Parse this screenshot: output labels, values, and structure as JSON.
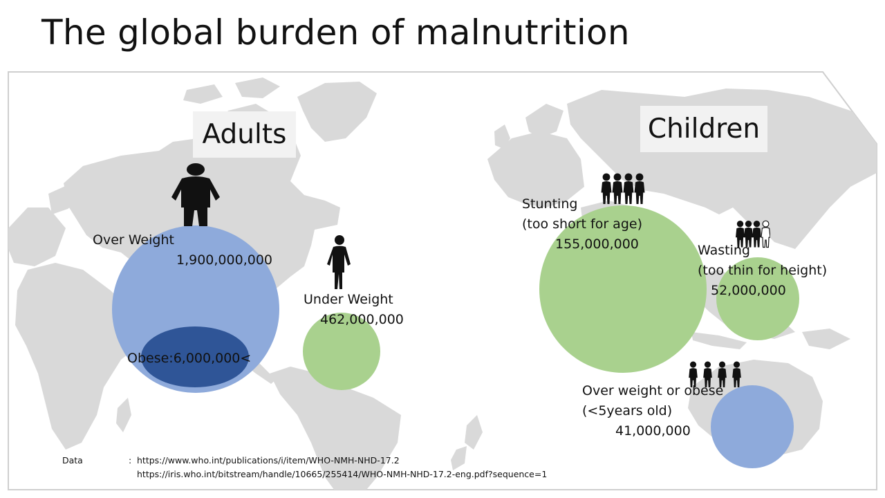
{
  "title": "The global burden of malnutrition",
  "adults": {
    "heading": "Adults",
    "over_weight": {
      "label": "Over Weight",
      "value": "1,900,000,000"
    },
    "obese": {
      "label": "Obese:6,000,000<"
    },
    "under_weight": {
      "label": "Under Weight",
      "value": "462,000,000"
    }
  },
  "children": {
    "heading": "Children",
    "stunting": {
      "label": "Stunting",
      "sublabel": "(too short for age)",
      "value": "155,000,000"
    },
    "wasting": {
      "label": "Wasting",
      "sublabel": "(too thin for height)",
      "value": "52,000,000"
    },
    "overweight": {
      "label": "Over weight or obese",
      "sublabel": "(<5years old)",
      "value": "41,000,000"
    }
  },
  "source": {
    "label": "Data",
    "separator": ":",
    "url1": "https://www.who.int/publications/i/item/WHO-NMH-NHD-17.2",
    "url2": "https://iris.who.int/bitstream/handle/10665/255414/WHO-NMH-NHD-17.2-eng.pdf?sequence=1"
  },
  "colors": {
    "blue": "#8eaadb",
    "dark_blue": "#2f5597",
    "green": "#a9d18e",
    "map": "#d9d9d9",
    "label_box": "#f2f2f2"
  }
}
